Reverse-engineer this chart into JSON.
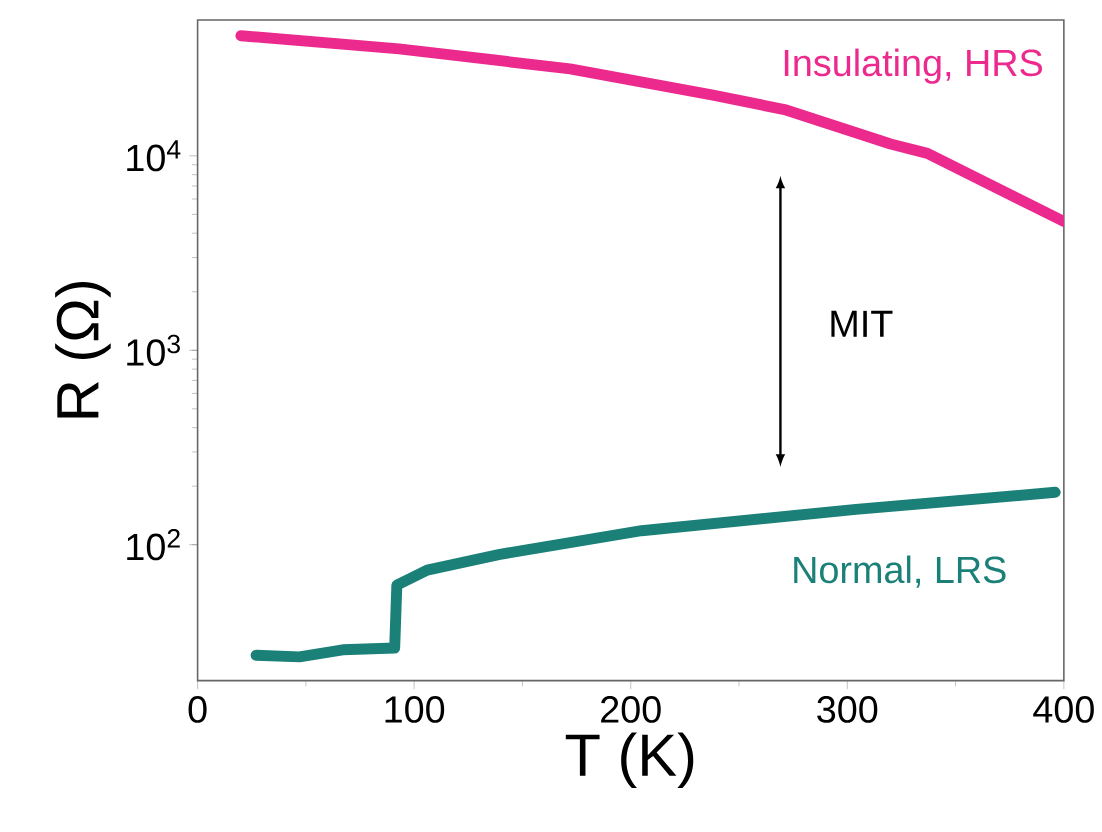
{
  "chart_data": {
    "type": "line",
    "xlabel": "T (K)",
    "ylabel": "R (Ω)",
    "log": "y",
    "grid": false,
    "marker": "none",
    "line_style": "solid",
    "xlim": [
      0,
      400
    ],
    "xticks": [
      0,
      100,
      200,
      300,
      400
    ],
    "ylim": [
      20,
      50000
    ],
    "yticks": [
      {
        "value": 100,
        "label": "10$^{2}$"
      },
      {
        "value": 1000,
        "label": "10$^{3}$"
      },
      {
        "value": 10000,
        "label": "10$^{4}$"
      }
    ],
    "annotations": [
      "MIT"
    ],
    "series": [
      {
        "name": "Insulating, HRS",
        "color": "#ec2a8e",
        "x": [
          20,
          93,
          172,
          238,
          271,
          320,
          337,
          400
        ],
        "values": [
          41500,
          35500,
          28000,
          20500,
          17300,
          11500,
          10300,
          4600
        ]
      },
      {
        "name": "Normal, LRS",
        "color": "#1a8078",
        "x": [
          27,
          47,
          67,
          91,
          92,
          106,
          139,
          205,
          304,
          396
        ],
        "values": [
          27,
          26.5,
          28.8,
          29.4,
          62,
          74,
          89,
          118,
          152,
          186
        ]
      }
    ]
  }
}
